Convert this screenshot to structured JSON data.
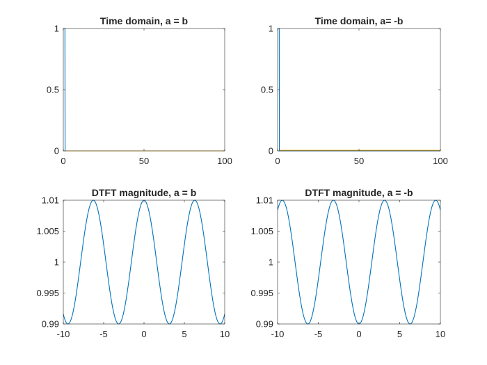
{
  "chart_data": [
    {
      "type": "line",
      "title": "Time domain, a = b",
      "xlim": [
        0,
        100
      ],
      "ylim": [
        0,
        1
      ],
      "xticks": [
        0,
        50,
        100
      ],
      "yticks": [
        0,
        0.5,
        1
      ],
      "xtick_labels": [
        "0",
        "50",
        "100"
      ],
      "ytick_labels": [
        "0",
        "0.5",
        "1"
      ],
      "grid": false,
      "series": [
        {
          "color": "#0072BD",
          "x": [
            0,
            1,
            1.1,
            100
          ],
          "y": [
            1,
            1,
            0,
            0
          ]
        },
        {
          "color": "#EDB120",
          "x": [
            1.1,
            100
          ],
          "y": [
            0,
            0
          ]
        }
      ]
    },
    {
      "type": "line",
      "title": "Time domain, a= -b",
      "xlim": [
        0,
        100
      ],
      "ylim": [
        0,
        1
      ],
      "xticks": [
        0,
        50,
        100
      ],
      "yticks": [
        0,
        0.5,
        1
      ],
      "xtick_labels": [
        "0",
        "50",
        "100"
      ],
      "ytick_labels": [
        "0",
        "0.5",
        "1"
      ],
      "grid": false,
      "series": [
        {
          "color": "#0072BD",
          "x": [
            0,
            1,
            1.1,
            100
          ],
          "y": [
            1,
            1,
            0,
            0
          ]
        },
        {
          "color": "#EDB120",
          "x": [
            1.1,
            100
          ],
          "y": [
            0.005,
            0.005
          ]
        }
      ]
    },
    {
      "type": "line",
      "title": "DTFT magnitude, a = b",
      "xlim": [
        -10,
        10
      ],
      "ylim": [
        0.99,
        1.01
      ],
      "xticks": [
        -10,
        -5,
        0,
        5,
        10
      ],
      "yticks": [
        0.99,
        0.995,
        1,
        1.005,
        1.01
      ],
      "xtick_labels": [
        "-10",
        "-5",
        "0",
        "5",
        "10"
      ],
      "ytick_labels": [
        "0.99",
        "0.995",
        "1",
        "1.005",
        "1.01"
      ],
      "grid": false,
      "series": [
        {
          "color": "#0072BD",
          "function": "1 + 0.01*cos(w)",
          "x_range": [
            -10,
            10
          ]
        }
      ]
    },
    {
      "type": "line",
      "title": "DTFT magnitude, a = -b",
      "xlim": [
        -10,
        10
      ],
      "ylim": [
        0.99,
        1.01
      ],
      "xticks": [
        -10,
        -5,
        0,
        5,
        10
      ],
      "yticks": [
        0.99,
        0.995,
        1,
        1.005,
        1.01
      ],
      "xtick_labels": [
        "-10",
        "-5",
        "0",
        "5",
        "10"
      ],
      "ytick_labels": [
        "0.99",
        "0.995",
        "1",
        "1.005",
        "1.01"
      ],
      "grid": false,
      "series": [
        {
          "color": "#0072BD",
          "function": "1 - 0.01*cos(w)",
          "x_range": [
            -10,
            10
          ]
        }
      ]
    }
  ]
}
